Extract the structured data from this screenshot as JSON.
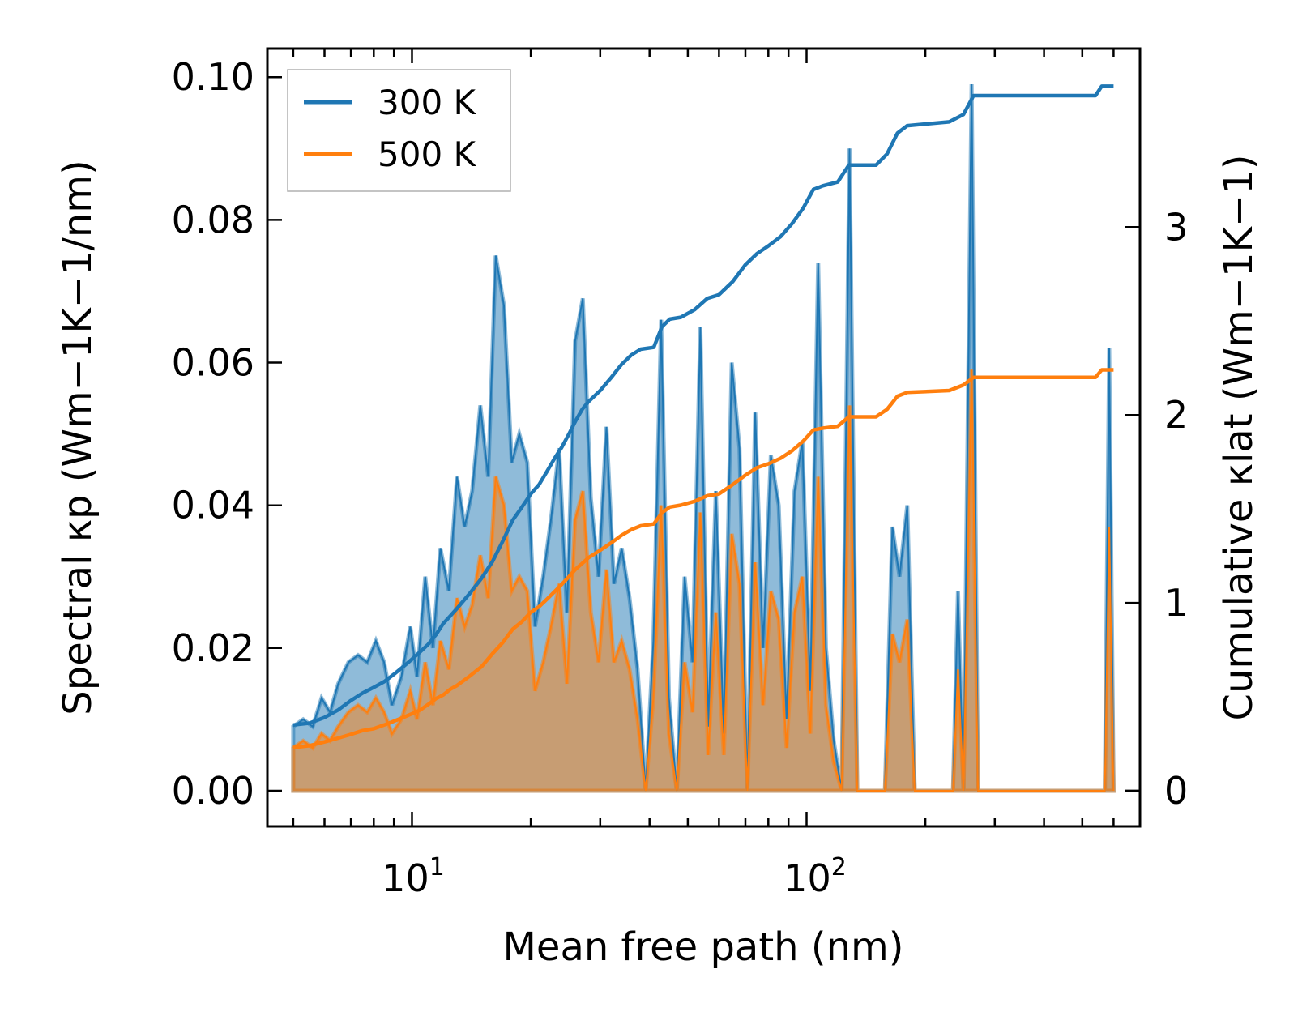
{
  "chart_data": {
    "type": "line",
    "xscale": "log",
    "xlabel": "Mean free path (nm)",
    "ylabel_left": "Spectral κp (Wm−1K−1/nm)",
    "ylabel_right": "Cumulative κlat (Wm−1K−1)",
    "xlim": [
      4.3,
      700
    ],
    "ylim_left": [
      -0.005,
      0.104
    ],
    "ylim_right": [
      -0.19,
      3.95
    ],
    "x_tick_labels": [
      "10",
      "1",
      "10",
      "2"
    ],
    "x_ticks": [
      10,
      100
    ],
    "y_left_ticks": [
      "0.00",
      "0.02",
      "0.04",
      "0.06",
      "0.08",
      "0.10"
    ],
    "y_left_tick_values": [
      0,
      0.02,
      0.04,
      0.06,
      0.08,
      0.1
    ],
    "y_right_ticks": [
      "0",
      "1",
      "2",
      "3"
    ],
    "y_right_tick_values": [
      0,
      1,
      2,
      3
    ],
    "legend_position": "top-left",
    "series": [
      {
        "name": "300 K",
        "color": "#1f77b4",
        "spectral": [
          [
            5.0,
            0.009
          ],
          [
            5.3,
            0.01
          ],
          [
            5.6,
            0.009
          ],
          [
            5.9,
            0.013
          ],
          [
            6.2,
            0.011
          ],
          [
            6.5,
            0.015
          ],
          [
            6.9,
            0.018
          ],
          [
            7.3,
            0.019
          ],
          [
            7.7,
            0.018
          ],
          [
            8.1,
            0.021
          ],
          [
            8.5,
            0.018
          ],
          [
            8.9,
            0.012
          ],
          [
            9.4,
            0.016
          ],
          [
            9.9,
            0.023
          ],
          [
            10.3,
            0.016
          ],
          [
            10.8,
            0.03
          ],
          [
            11.3,
            0.02
          ],
          [
            11.8,
            0.034
          ],
          [
            12.4,
            0.028
          ],
          [
            13.0,
            0.044
          ],
          [
            13.6,
            0.037
          ],
          [
            14.2,
            0.042
          ],
          [
            14.9,
            0.054
          ],
          [
            15.6,
            0.044
          ],
          [
            16.3,
            0.075
          ],
          [
            17.1,
            0.068
          ],
          [
            17.9,
            0.046
          ],
          [
            18.7,
            0.05
          ],
          [
            19.6,
            0.046
          ],
          [
            20.5,
            0.023
          ],
          [
            21.5,
            0.03
          ],
          [
            22.5,
            0.038
          ],
          [
            23.6,
            0.048
          ],
          [
            24.7,
            0.025
          ],
          [
            25.9,
            0.063
          ],
          [
            27.1,
            0.069
          ],
          [
            28.4,
            0.041
          ],
          [
            29.7,
            0.03
          ],
          [
            31.1,
            0.051
          ],
          [
            32.5,
            0.029
          ],
          [
            34.0,
            0.034
          ],
          [
            35.6,
            0.027
          ],
          [
            37.3,
            0.017
          ],
          [
            39.1,
            0.0
          ],
          [
            40.9,
            0.021
          ],
          [
            42.8,
            0.066
          ],
          [
            44.8,
            0.013
          ],
          [
            46.9,
            0.0
          ],
          [
            49.1,
            0.03
          ],
          [
            51.4,
            0.018
          ],
          [
            53.8,
            0.065
          ],
          [
            56.3,
            0.009
          ],
          [
            58.9,
            0.042
          ],
          [
            61.7,
            0.008
          ],
          [
            64.6,
            0.06
          ],
          [
            67.6,
            0.048
          ],
          [
            70.8,
            0.0
          ],
          [
            74.1,
            0.053
          ],
          [
            77.6,
            0.02
          ],
          [
            81.2,
            0.047
          ],
          [
            85.0,
            0.04
          ],
          [
            89.0,
            0.01
          ],
          [
            93.2,
            0.042
          ],
          [
            97.6,
            0.049
          ],
          [
            102.2,
            0.014
          ],
          [
            107.0,
            0.074
          ],
          [
            112.0,
            0.02
          ],
          [
            117.2,
            0.007
          ],
          [
            122.7,
            0.0
          ],
          [
            128.5,
            0.09
          ],
          [
            134.5,
            0.0
          ],
          [
            158.0,
            0.0
          ],
          [
            165.0,
            0.037
          ],
          [
            172.0,
            0.03
          ],
          [
            180.0,
            0.04
          ],
          [
            188.0,
            0.0
          ],
          [
            235.0,
            0.0
          ],
          [
            242.0,
            0.028
          ],
          [
            250.0,
            0.0
          ],
          [
            262.0,
            0.099
          ],
          [
            272.0,
            0.0
          ],
          [
            570.0,
            0.0
          ],
          [
            585.0,
            0.062
          ],
          [
            600.0,
            0.0
          ]
        ],
        "cumulative": [
          [
            5.0,
            0.35
          ],
          [
            5.5,
            0.36
          ],
          [
            6.0,
            0.39
          ],
          [
            6.5,
            0.43
          ],
          [
            7.0,
            0.48
          ],
          [
            7.5,
            0.52
          ],
          [
            8.0,
            0.55
          ],
          [
            8.5,
            0.58
          ],
          [
            9.0,
            0.62
          ],
          [
            9.5,
            0.66
          ],
          [
            10.0,
            0.7
          ],
          [
            10.5,
            0.74
          ],
          [
            11.0,
            0.78
          ],
          [
            11.5,
            0.83
          ],
          [
            12.0,
            0.89
          ],
          [
            12.5,
            0.93
          ],
          [
            13.0,
            0.97
          ],
          [
            14.0,
            1.05
          ],
          [
            15.0,
            1.13
          ],
          [
            16.0,
            1.22
          ],
          [
            17.0,
            1.33
          ],
          [
            18.0,
            1.44
          ],
          [
            19.0,
            1.51
          ],
          [
            20.0,
            1.58
          ],
          [
            21.0,
            1.63
          ],
          [
            22.0,
            1.7
          ],
          [
            23.0,
            1.77
          ],
          [
            24.0,
            1.83
          ],
          [
            25.0,
            1.9
          ],
          [
            26.0,
            1.97
          ],
          [
            27.0,
            2.03
          ],
          [
            28.0,
            2.07
          ],
          [
            30.0,
            2.13
          ],
          [
            32.0,
            2.2
          ],
          [
            34.0,
            2.27
          ],
          [
            36.0,
            2.32
          ],
          [
            38.0,
            2.35
          ],
          [
            41.0,
            2.36
          ],
          [
            43.0,
            2.47
          ],
          [
            45.0,
            2.51
          ],
          [
            48.0,
            2.52
          ],
          [
            52.0,
            2.56
          ],
          [
            56.0,
            2.62
          ],
          [
            60.0,
            2.64
          ],
          [
            65.0,
            2.71
          ],
          [
            70.0,
            2.8
          ],
          [
            75.0,
            2.86
          ],
          [
            80.0,
            2.9
          ],
          [
            86.0,
            2.95
          ],
          [
            92.0,
            3.02
          ],
          [
            98.0,
            3.1
          ],
          [
            104.0,
            3.2
          ],
          [
            110.0,
            3.22
          ],
          [
            120.0,
            3.24
          ],
          [
            128.0,
            3.33
          ],
          [
            150.0,
            3.33
          ],
          [
            160.0,
            3.39
          ],
          [
            170.0,
            3.5
          ],
          [
            180.0,
            3.54
          ],
          [
            230.0,
            3.56
          ],
          [
            250.0,
            3.6
          ],
          [
            265.0,
            3.7
          ],
          [
            540.0,
            3.7
          ],
          [
            560.0,
            3.75
          ],
          [
            600.0,
            3.75
          ]
        ]
      },
      {
        "name": "500 K",
        "color": "#ff7f0e",
        "spectral": [
          [
            5.0,
            0.006
          ],
          [
            5.3,
            0.007
          ],
          [
            5.6,
            0.006
          ],
          [
            5.9,
            0.008
          ],
          [
            6.2,
            0.007
          ],
          [
            6.5,
            0.009
          ],
          [
            6.9,
            0.011
          ],
          [
            7.3,
            0.012
          ],
          [
            7.7,
            0.011
          ],
          [
            8.1,
            0.013
          ],
          [
            8.5,
            0.011
          ],
          [
            8.9,
            0.008
          ],
          [
            9.4,
            0.01
          ],
          [
            9.9,
            0.014
          ],
          [
            10.3,
            0.01
          ],
          [
            10.8,
            0.018
          ],
          [
            11.3,
            0.012
          ],
          [
            11.8,
            0.021
          ],
          [
            12.4,
            0.017
          ],
          [
            13.0,
            0.027
          ],
          [
            13.6,
            0.023
          ],
          [
            14.2,
            0.026
          ],
          [
            14.9,
            0.033
          ],
          [
            15.6,
            0.027
          ],
          [
            16.3,
            0.044
          ],
          [
            17.1,
            0.04
          ],
          [
            17.9,
            0.028
          ],
          [
            18.7,
            0.03
          ],
          [
            19.6,
            0.028
          ],
          [
            20.5,
            0.014
          ],
          [
            21.5,
            0.018
          ],
          [
            22.5,
            0.023
          ],
          [
            23.6,
            0.029
          ],
          [
            24.7,
            0.015
          ],
          [
            25.9,
            0.038
          ],
          [
            27.1,
            0.042
          ],
          [
            28.4,
            0.025
          ],
          [
            29.7,
            0.018
          ],
          [
            31.1,
            0.031
          ],
          [
            32.5,
            0.018
          ],
          [
            34.0,
            0.021
          ],
          [
            35.6,
            0.017
          ],
          [
            37.3,
            0.01
          ],
          [
            39.1,
            0.0
          ],
          [
            40.9,
            0.013
          ],
          [
            42.8,
            0.04
          ],
          [
            44.8,
            0.008
          ],
          [
            46.9,
            0.0
          ],
          [
            49.1,
            0.018
          ],
          [
            51.4,
            0.011
          ],
          [
            53.8,
            0.039
          ],
          [
            56.3,
            0.005
          ],
          [
            58.9,
            0.025
          ],
          [
            61.7,
            0.005
          ],
          [
            64.6,
            0.036
          ],
          [
            67.6,
            0.029
          ],
          [
            70.8,
            0.0
          ],
          [
            74.1,
            0.032
          ],
          [
            77.6,
            0.012
          ],
          [
            81.2,
            0.028
          ],
          [
            85.0,
            0.024
          ],
          [
            89.0,
            0.006
          ],
          [
            93.2,
            0.025
          ],
          [
            97.6,
            0.03
          ],
          [
            102.2,
            0.008
          ],
          [
            107.0,
            0.044
          ],
          [
            112.0,
            0.012
          ],
          [
            117.2,
            0.004
          ],
          [
            122.7,
            0.0
          ],
          [
            128.5,
            0.054
          ],
          [
            134.5,
            0.0
          ],
          [
            158.0,
            0.0
          ],
          [
            165.0,
            0.022
          ],
          [
            172.0,
            0.018
          ],
          [
            180.0,
            0.024
          ],
          [
            188.0,
            0.0
          ],
          [
            235.0,
            0.0
          ],
          [
            242.0,
            0.017
          ],
          [
            250.0,
            0.0
          ],
          [
            262.0,
            0.059
          ],
          [
            272.0,
            0.0
          ],
          [
            570.0,
            0.0
          ],
          [
            585.0,
            0.037
          ],
          [
            600.0,
            0.0
          ]
        ],
        "cumulative": [
          [
            5.0,
            0.23
          ],
          [
            5.5,
            0.24
          ],
          [
            6.0,
            0.26
          ],
          [
            6.5,
            0.28
          ],
          [
            7.0,
            0.3
          ],
          [
            7.5,
            0.32
          ],
          [
            8.0,
            0.33
          ],
          [
            8.5,
            0.35
          ],
          [
            9.0,
            0.37
          ],
          [
            9.5,
            0.39
          ],
          [
            10.0,
            0.41
          ],
          [
            10.5,
            0.43
          ],
          [
            11.0,
            0.46
          ],
          [
            11.5,
            0.49
          ],
          [
            12.0,
            0.51
          ],
          [
            12.5,
            0.54
          ],
          [
            13.0,
            0.56
          ],
          [
            14.0,
            0.61
          ],
          [
            15.0,
            0.66
          ],
          [
            16.0,
            0.73
          ],
          [
            17.0,
            0.79
          ],
          [
            18.0,
            0.86
          ],
          [
            19.0,
            0.9
          ],
          [
            20.0,
            0.95
          ],
          [
            21.0,
            0.98
          ],
          [
            22.0,
            1.02
          ],
          [
            23.0,
            1.06
          ],
          [
            24.0,
            1.1
          ],
          [
            25.0,
            1.14
          ],
          [
            26.0,
            1.18
          ],
          [
            27.0,
            1.21
          ],
          [
            28.0,
            1.24
          ],
          [
            30.0,
            1.28
          ],
          [
            32.0,
            1.32
          ],
          [
            34.0,
            1.36
          ],
          [
            36.0,
            1.39
          ],
          [
            38.0,
            1.41
          ],
          [
            41.0,
            1.42
          ],
          [
            43.0,
            1.48
          ],
          [
            45.0,
            1.51
          ],
          [
            48.0,
            1.52
          ],
          [
            52.0,
            1.54
          ],
          [
            56.0,
            1.57
          ],
          [
            60.0,
            1.58
          ],
          [
            65.0,
            1.63
          ],
          [
            70.0,
            1.68
          ],
          [
            75.0,
            1.72
          ],
          [
            80.0,
            1.74
          ],
          [
            86.0,
            1.77
          ],
          [
            92.0,
            1.81
          ],
          [
            98.0,
            1.86
          ],
          [
            104.0,
            1.92
          ],
          [
            110.0,
            1.93
          ],
          [
            120.0,
            1.94
          ],
          [
            128.0,
            1.99
          ],
          [
            150.0,
            1.99
          ],
          [
            160.0,
            2.03
          ],
          [
            170.0,
            2.1
          ],
          [
            180.0,
            2.12
          ],
          [
            230.0,
            2.13
          ],
          [
            250.0,
            2.16
          ],
          [
            265.0,
            2.2
          ],
          [
            540.0,
            2.2
          ],
          [
            560.0,
            2.24
          ],
          [
            600.0,
            2.24
          ]
        ]
      }
    ]
  }
}
